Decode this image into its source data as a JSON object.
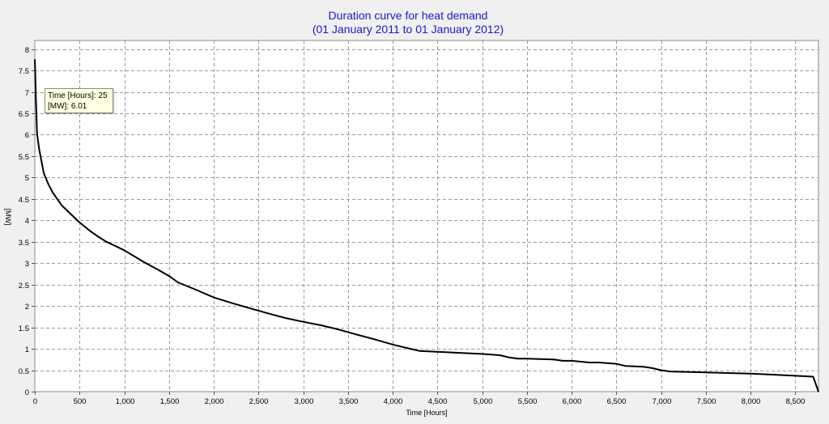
{
  "chart_data": {
    "type": "line",
    "title": "Duration curve for heat demand",
    "subtitle": "(01 January 2011  to  01 January 2012)",
    "xlabel": "Time [Hours]",
    "ylabel": "[MW]",
    "xlim": [
      0,
      8760
    ],
    "ylim": [
      0,
      8.2
    ],
    "x_ticks": [
      0,
      500,
      1000,
      1500,
      2000,
      2500,
      3000,
      3500,
      4000,
      4500,
      5000,
      5500,
      6000,
      6500,
      7000,
      7500,
      8000,
      8500
    ],
    "x_tick_labels": [
      "0",
      "500",
      "1,000",
      "1,500",
      "2,000",
      "2,500",
      "3,000",
      "3,500",
      "4,000",
      "4,500",
      "5,000",
      "5,500",
      "6,000",
      "6,500",
      "7,000",
      "7,500",
      "8,000",
      "8,500"
    ],
    "y_ticks": [
      0,
      0.5,
      1,
      1.5,
      2,
      2.5,
      3,
      3.5,
      4,
      4.5,
      5,
      5.5,
      6,
      6.5,
      7,
      7.5,
      8
    ],
    "y_tick_labels": [
      "0",
      "0.5",
      "1",
      "1.5",
      "2",
      "2.5",
      "3",
      "3.5",
      "4",
      "4.5",
      "5",
      "5.5",
      "6",
      "6.5",
      "7",
      "7.5",
      "8"
    ],
    "grid": true,
    "series": [
      {
        "name": "Heat demand",
        "x": [
          0,
          5,
          10,
          25,
          50,
          100,
          150,
          200,
          300,
          400,
          500,
          600,
          700,
          800,
          900,
          1000,
          1200,
          1400,
          1500,
          1600,
          1800,
          2000,
          2200,
          2400,
          2600,
          2800,
          3000,
          3200,
          3400,
          3600,
          3800,
          4000,
          4200,
          4300,
          4500,
          4800,
          5000,
          5200,
          5300,
          5400,
          5500,
          5800,
          5900,
          6000,
          6200,
          6300,
          6500,
          6600,
          6800,
          6900,
          7000,
          7100,
          7500,
          8000,
          8200,
          8500,
          8700,
          8760
        ],
        "y": [
          7.75,
          7.4,
          7.0,
          6.01,
          5.65,
          5.1,
          4.85,
          4.65,
          4.35,
          4.15,
          3.95,
          3.78,
          3.63,
          3.5,
          3.4,
          3.3,
          3.05,
          2.82,
          2.7,
          2.55,
          2.38,
          2.2,
          2.07,
          1.95,
          1.83,
          1.72,
          1.63,
          1.55,
          1.45,
          1.33,
          1.22,
          1.1,
          1.0,
          0.95,
          0.93,
          0.9,
          0.88,
          0.85,
          0.8,
          0.77,
          0.77,
          0.75,
          0.72,
          0.72,
          0.68,
          0.68,
          0.65,
          0.6,
          0.58,
          0.55,
          0.5,
          0.47,
          0.45,
          0.42,
          0.4,
          0.37,
          0.35,
          0.0
        ]
      }
    ],
    "tooltip": {
      "line1": "Time [Hours]: 25",
      "line2": "[MW]: 6.01"
    }
  }
}
